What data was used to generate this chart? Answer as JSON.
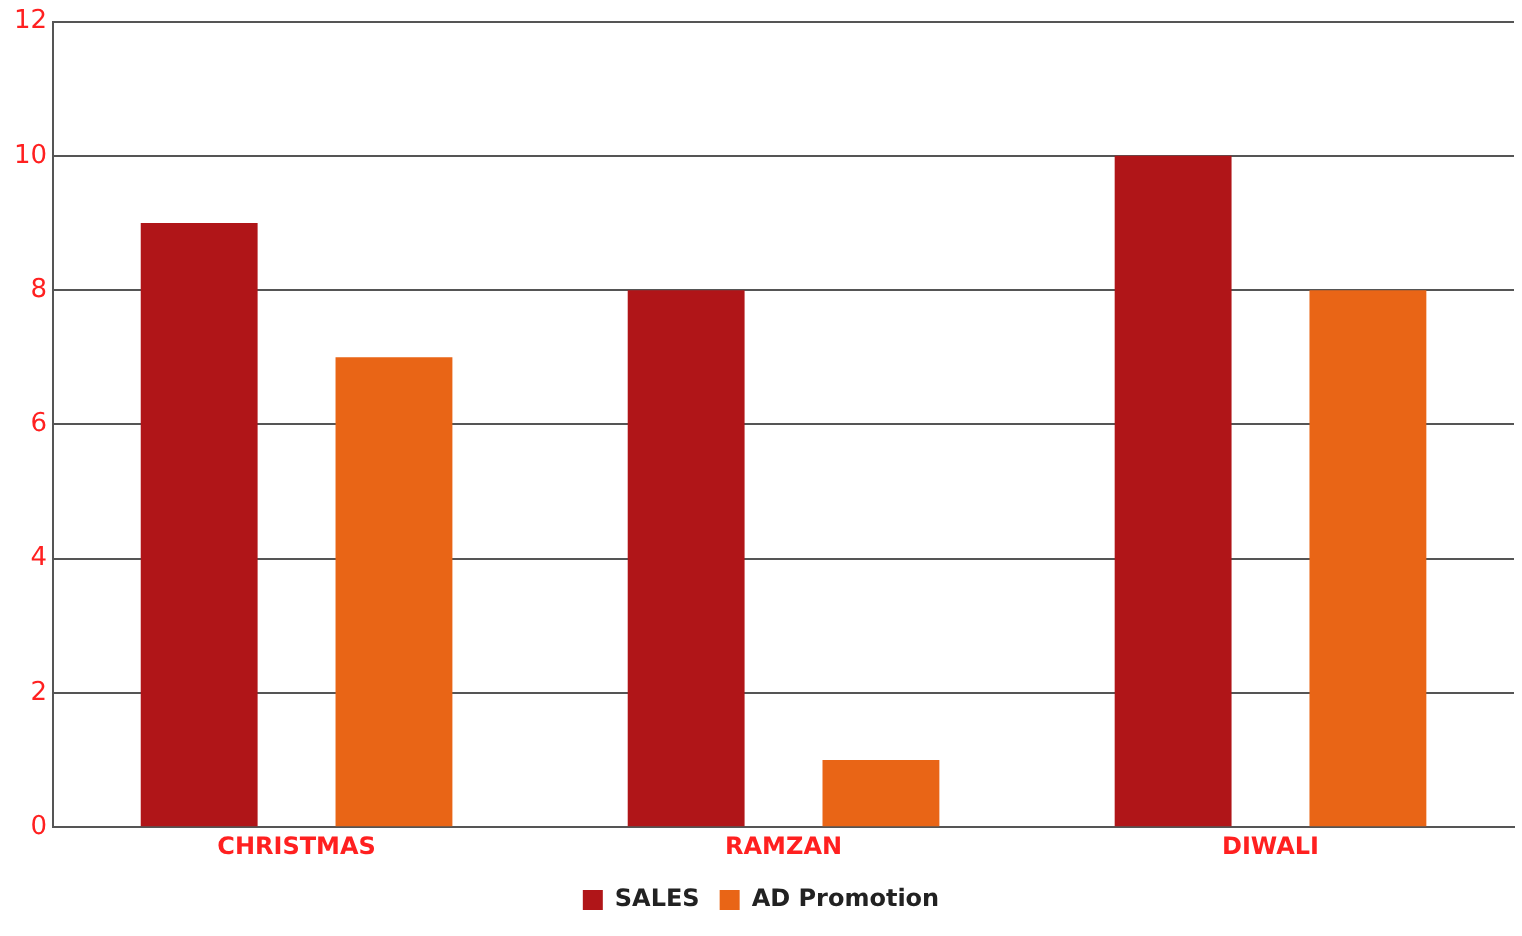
{
  "chart_data": {
    "type": "bar",
    "categories": [
      "CHRISTMAS",
      "RAMZAN",
      "DIWALI"
    ],
    "series": [
      {
        "name": "SALES",
        "color": "#b01518",
        "values": [
          9,
          8,
          10
        ]
      },
      {
        "name": "AD Promotion",
        "color": "#e96516",
        "values": [
          7,
          1,
          8
        ]
      }
    ],
    "ylim": [
      0,
      12
    ],
    "yticks": [
      0,
      2,
      4,
      6,
      8,
      10,
      12
    ],
    "grid": "y",
    "legend": "bottom"
  }
}
